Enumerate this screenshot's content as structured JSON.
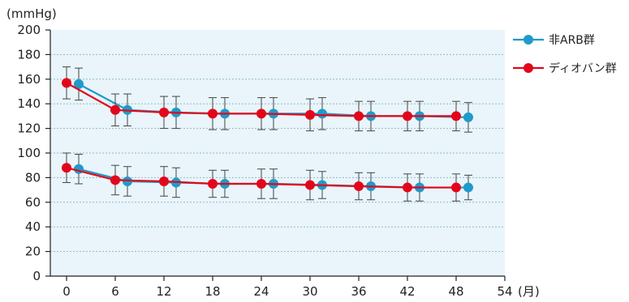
{
  "chart_data": {
    "type": "line",
    "y_unit": "(mmHg)",
    "x_unit": "(月)",
    "xlim": [
      -2,
      54
    ],
    "ylim": [
      0,
      200
    ],
    "x_ticks": [
      0,
      6,
      12,
      18,
      24,
      30,
      36,
      42,
      48,
      54
    ],
    "x_tick_labels": [
      "0",
      "6",
      "12",
      "18",
      "24",
      "30",
      "36",
      "42",
      "48",
      "54"
    ],
    "y_ticks": [
      0,
      20,
      40,
      60,
      80,
      100,
      120,
      140,
      160,
      180,
      200
    ],
    "y_tick_labels": [
      "0",
      "20",
      "40",
      "60",
      "80",
      "100",
      "120",
      "140",
      "160",
      "180",
      "200"
    ],
    "grid": "horizontal dotted",
    "plot_background": "#e9f5fa",
    "legend_position": "top-right",
    "series": [
      {
        "name": "非ARB群",
        "color": "#1f9ac9",
        "groups": [
          {
            "x": [
              1.5,
              7.5,
              13.5,
              19.5,
              25.5,
              31.5,
              37.5,
              43.5,
              49.5
            ],
            "y": [
              156,
              135,
              133,
              132,
              132,
              132,
              130,
              130,
              129
            ],
            "err": [
              13,
              13,
              13,
              13,
              13,
              13,
              12,
              12,
              12
            ]
          },
          {
            "x": [
              1.5,
              7.5,
              13.5,
              19.5,
              25.5,
              31.5,
              37.5,
              43.5,
              49.5
            ],
            "y": [
              87,
              77,
              76,
              75,
              75,
              74,
              73,
              72,
              72
            ],
            "err": [
              12,
              12,
              12,
              11,
              12,
              11,
              11,
              11,
              10
            ]
          }
        ]
      },
      {
        "name": "ディオバン群",
        "color": "#e3061b",
        "groups": [
          {
            "x": [
              0,
              6,
              12,
              18,
              24,
              30,
              36,
              42,
              48
            ],
            "y": [
              157,
              135,
              133,
              132,
              132,
              131,
              130,
              130,
              130
            ],
            "err": [
              13,
              13,
              13,
              13,
              13,
              13,
              12,
              12,
              12
            ]
          },
          {
            "x": [
              0,
              6,
              12,
              18,
              24,
              30,
              36,
              42,
              48
            ],
            "y": [
              88,
              78,
              77,
              75,
              75,
              74,
              73,
              72,
              72
            ],
            "err": [
              12,
              12,
              12,
              11,
              12,
              12,
              11,
              11,
              11
            ]
          }
        ]
      }
    ]
  }
}
